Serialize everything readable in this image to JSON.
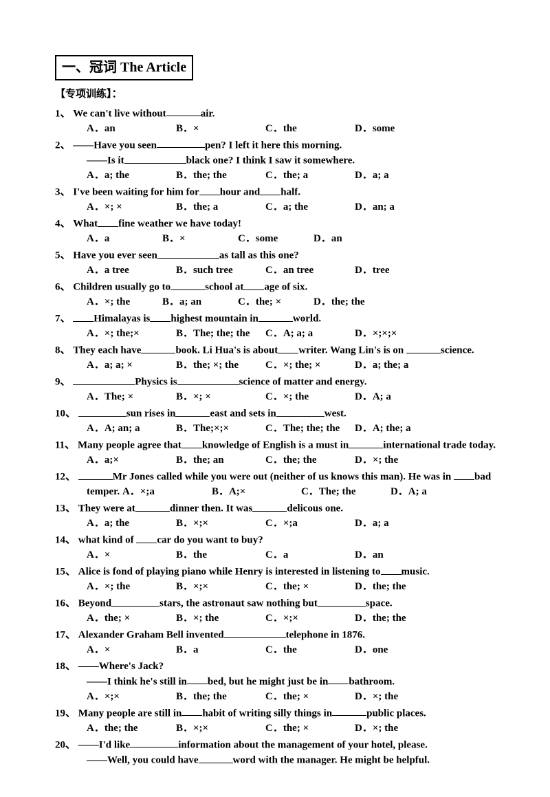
{
  "title": "一、冠词 The Article",
  "section_label": "【专项训练】：",
  "questions": [
    {
      "num": "1、",
      "lines": [
        "We can't live without______air."
      ],
      "opts": [
        "A．an",
        "B．×",
        "C．the",
        "D．some"
      ]
    },
    {
      "num": "2、",
      "lines": [
        "——Have you seen_________pen? I left it here this morning.",
        "——Is it____________black one? I think I saw it somewhere."
      ],
      "opts": [
        "A．a; the",
        "B．the; the",
        "C．the; a",
        "D．a; a"
      ]
    },
    {
      "num": "3、",
      "lines": [
        "I've been waiting for him for_____hour and_____half."
      ],
      "opts": [
        "A．×; ×",
        "B．the; a",
        "C．a; the",
        "D．an; a"
      ]
    },
    {
      "num": "4、",
      "lines": [
        "What_____fine weather we have today!"
      ],
      "opts": [
        "A．a",
        "B．×",
        "C．some",
        "D．an"
      ],
      "opt_class": "narrow"
    },
    {
      "num": "5、",
      "lines": [
        "Have you ever seen____________as tall as this one?"
      ],
      "opts": [
        "A．a tree",
        "B．such tree",
        "C．an tree",
        "D．tree"
      ]
    },
    {
      "num": "6、",
      "lines": [
        "Children usually go to______school at_____age of six."
      ],
      "opts": [
        "A．×; the",
        "B．a; an",
        "C．the; ×",
        "D．the; the"
      ],
      "opt_class": "narrow"
    },
    {
      "num": "7、",
      "lines": [
        "_____Himalayas is_____highest mountain in_______world."
      ],
      "opts": [
        "A．×; the;×",
        "B．The; the; the",
        "C．A; a; a",
        "D．×;×;×"
      ]
    },
    {
      "num": "8、",
      "lines": [
        "They each have______book. Li Hua's is about__writer. Wang Lin's is on _______science."
      ],
      "opts": [
        "A．a; a; ×",
        "B．the; ×; the",
        "C．×; the; ×",
        "D．a; the; a"
      ]
    },
    {
      "num": "9、",
      "lines": [
        "_____________Physics is____________science of matter and energy."
      ],
      "opts": [
        "A．The; ×",
        "B．×; ×",
        "C．×; the",
        "D．A; a"
      ]
    },
    {
      "num": "10、",
      "lines": [
        "___________sun rises in_______east and sets in__________west."
      ],
      "opts": [
        "A．A; an; a",
        "B．The;×;×",
        "C．The; the; the",
        "D．A; the; a"
      ]
    },
    {
      "num": "11、",
      "lines": [
        "Many people agree that__knowledge of English is a must in______international trade today."
      ],
      "opts": [
        "A．a;×",
        "B．the; an",
        "C．the; the",
        "D．×; the"
      ]
    },
    {
      "num": "12、",
      "lines": [
        "______Mr Jones called while you were out (neither of us knows this man). He was in ____bad"
      ],
      "inline_opts_prefix": "temper.  ",
      "opts": [
        "A．×;a",
        "B．A;×",
        "C．The; the",
        "D．A; a"
      ],
      "inline": true
    },
    {
      "num": "13、",
      "lines": [
        "They were at______dinner then. It was________delicous one."
      ],
      "opts": [
        "A．a; the",
        "B．×;×",
        "C．×;a",
        "D．a; a"
      ]
    },
    {
      "num": "14、",
      "lines": [
        "what kind of _____car do you want to buy?"
      ],
      "opts": [
        "A．×",
        "B．the",
        "C．a",
        "D．an"
      ]
    },
    {
      "num": "15、",
      "lines": [
        "Alice is fond of playing piano while Henry is interested in listening to__music."
      ],
      "opts": [
        "A．×; the",
        "B．×;×",
        "C．the; ×",
        "D．the; the"
      ]
    },
    {
      "num": "16、",
      "lines": [
        "Beyond_________stars, the astronaut saw nothing but_________space."
      ],
      "opts": [
        "A．the; ×",
        "B．×; the",
        "C．×;×",
        "D．the; the"
      ]
    },
    {
      "num": "17、",
      "lines": [
        "Alexander Graham Bell invented________________telephone in 1876."
      ],
      "opts": [
        "A．×",
        "B．a",
        "C．the",
        "D．one"
      ]
    },
    {
      "num": "18、",
      "lines": [
        "——Where's Jack?",
        "——I think he's still in_____bed, but he might just be in_____bathroom."
      ],
      "opts": [
        "A．×;×",
        "B．the; the",
        "C．the; ×",
        "D．×; the"
      ]
    },
    {
      "num": "19、",
      "lines": [
        "Many people are still in____habit of writing silly things in_______public places."
      ],
      "opts": [
        "A．the; the",
        "B．×;×",
        "C．the; ×",
        "D．×; the"
      ]
    },
    {
      "num": "20、",
      "lines": [
        "——I'd like__________information about the management of your hotel, please.",
        "——Well, you could have_______word with the manager. He might be helpful."
      ],
      "opts": []
    }
  ]
}
